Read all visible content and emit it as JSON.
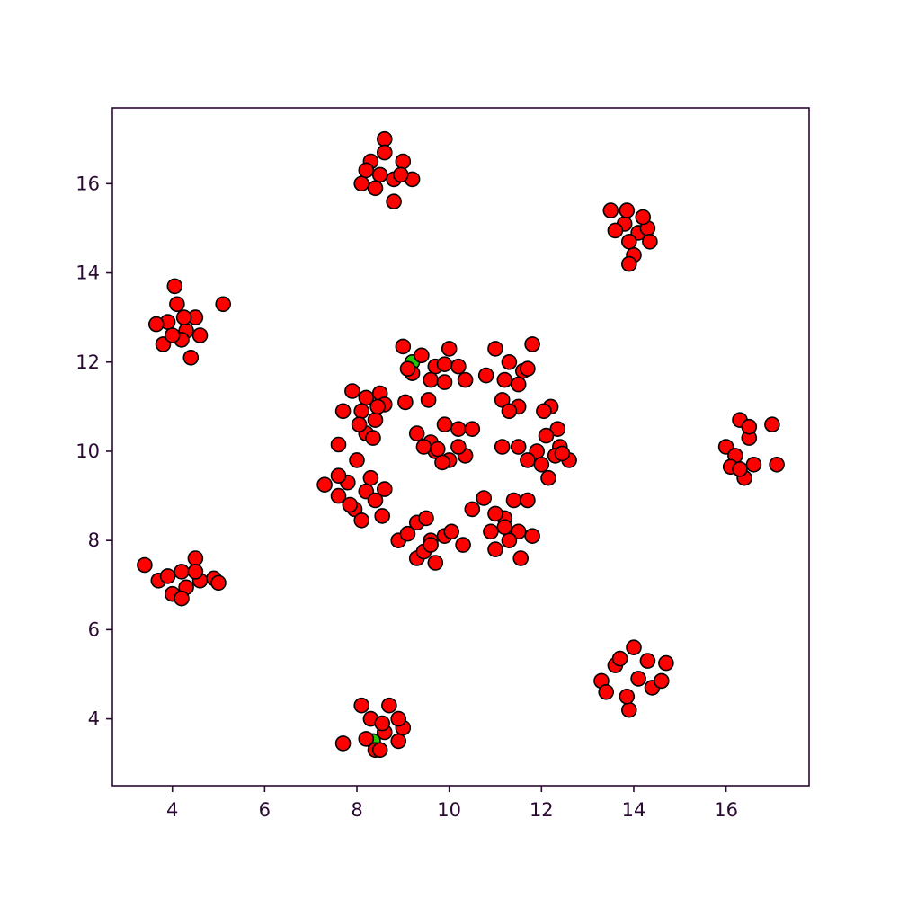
{
  "chart_data": {
    "type": "scatter",
    "title": "",
    "xlabel": "",
    "ylabel": "",
    "xlim": [
      2.7,
      17.8
    ],
    "ylim": [
      2.5,
      17.7
    ],
    "xticks": [
      4,
      6,
      8,
      10,
      12,
      14,
      16
    ],
    "yticks": [
      4,
      6,
      8,
      10,
      12,
      14,
      16
    ],
    "grid": false,
    "legend": "none",
    "colors": {
      "marker_fill": "#ff0000",
      "marker_edge": "#000000",
      "highlight_fill": "#22c800",
      "axis": "#2a0a33",
      "tick_label": "#2a0a33"
    },
    "series": [
      {
        "points": [
          [
            8.6,
            17.0
          ],
          [
            8.3,
            16.5
          ],
          [
            8.5,
            16.2
          ],
          [
            8.8,
            16.1
          ],
          [
            9.0,
            16.5
          ],
          [
            8.1,
            16.0
          ],
          [
            8.4,
            15.9
          ],
          [
            8.8,
            15.6
          ],
          [
            9.2,
            16.1
          ],
          [
            8.6,
            16.7
          ],
          [
            8.2,
            16.3
          ],
          [
            8.95,
            16.2
          ],
          [
            13.5,
            15.4
          ],
          [
            13.8,
            15.1
          ],
          [
            14.1,
            14.9
          ],
          [
            14.3,
            15.0
          ],
          [
            13.9,
            14.7
          ],
          [
            13.6,
            14.95
          ],
          [
            14.0,
            14.4
          ],
          [
            13.9,
            14.2
          ],
          [
            14.2,
            15.25
          ],
          [
            13.85,
            15.4
          ],
          [
            14.35,
            14.7
          ],
          [
            4.05,
            13.7
          ],
          [
            4.1,
            13.3
          ],
          [
            3.9,
            12.9
          ],
          [
            4.3,
            12.7
          ],
          [
            4.5,
            13.0
          ],
          [
            3.8,
            12.4
          ],
          [
            4.2,
            12.5
          ],
          [
            4.4,
            12.1
          ],
          [
            4.6,
            12.6
          ],
          [
            5.1,
            13.3
          ],
          [
            3.65,
            12.85
          ],
          [
            4.25,
            13.0
          ],
          [
            4.0,
            12.6
          ],
          [
            16.3,
            10.7
          ],
          [
            16.0,
            10.1
          ],
          [
            16.2,
            9.9
          ],
          [
            16.5,
            10.3
          ],
          [
            16.6,
            9.7
          ],
          [
            16.4,
            9.4
          ],
          [
            16.1,
            9.65
          ],
          [
            17.0,
            10.6
          ],
          [
            17.1,
            9.7
          ],
          [
            16.5,
            10.55
          ],
          [
            16.3,
            9.6
          ],
          [
            3.4,
            7.45
          ],
          [
            3.7,
            7.1
          ],
          [
            4.0,
            6.8
          ],
          [
            4.2,
            7.3
          ],
          [
            4.5,
            7.6
          ],
          [
            4.3,
            6.95
          ],
          [
            4.6,
            7.1
          ],
          [
            4.9,
            7.15
          ],
          [
            5.0,
            7.05
          ],
          [
            4.2,
            6.7
          ],
          [
            4.5,
            7.3
          ],
          [
            3.9,
            7.2
          ],
          [
            13.3,
            4.85
          ],
          [
            13.6,
            5.2
          ],
          [
            14.0,
            5.6
          ],
          [
            14.3,
            5.3
          ],
          [
            14.7,
            5.25
          ],
          [
            14.1,
            4.9
          ],
          [
            14.4,
            4.7
          ],
          [
            13.9,
            4.2
          ],
          [
            13.85,
            4.5
          ],
          [
            13.4,
            4.6
          ],
          [
            14.6,
            4.85
          ],
          [
            13.7,
            5.35
          ],
          [
            8.1,
            4.3
          ],
          [
            8.3,
            4.0
          ],
          [
            8.6,
            3.7
          ],
          [
            8.9,
            3.5
          ],
          [
            8.7,
            4.3
          ],
          [
            8.4,
            3.3
          ],
          [
            8.2,
            3.55
          ],
          [
            9.0,
            3.8
          ],
          [
            7.7,
            3.45
          ],
          [
            8.55,
            3.9
          ],
          [
            8.9,
            4.0
          ],
          [
            8.5,
            3.3
          ],
          [
            9.0,
            12.35
          ],
          [
            9.4,
            12.15
          ],
          [
            9.7,
            11.9
          ],
          [
            10.0,
            12.3
          ],
          [
            10.2,
            11.9
          ],
          [
            9.2,
            11.75
          ],
          [
            9.6,
            11.6
          ],
          [
            9.9,
            11.55
          ],
          [
            10.35,
            11.6
          ],
          [
            9.05,
            11.1
          ],
          [
            9.55,
            11.15
          ],
          [
            9.1,
            11.85
          ],
          [
            9.9,
            11.95
          ],
          [
            11.0,
            12.3
          ],
          [
            11.3,
            12.0
          ],
          [
            11.6,
            11.8
          ],
          [
            11.8,
            12.4
          ],
          [
            11.2,
            11.6
          ],
          [
            11.5,
            11.5
          ],
          [
            11.15,
            11.15
          ],
          [
            11.5,
            11.0
          ],
          [
            10.8,
            11.7
          ],
          [
            11.3,
            10.9
          ],
          [
            11.7,
            11.85
          ],
          [
            12.2,
            11.0
          ],
          [
            12.35,
            10.5
          ],
          [
            12.1,
            10.35
          ],
          [
            12.4,
            10.1
          ],
          [
            11.9,
            10.0
          ],
          [
            12.0,
            9.7
          ],
          [
            12.3,
            9.9
          ],
          [
            12.6,
            9.8
          ],
          [
            11.5,
            10.1
          ],
          [
            11.7,
            9.8
          ],
          [
            12.15,
            9.4
          ],
          [
            11.15,
            10.1
          ],
          [
            12.05,
            10.9
          ],
          [
            12.45,
            9.95
          ],
          [
            11.4,
            8.9
          ],
          [
            11.2,
            8.5
          ],
          [
            11.5,
            8.2
          ],
          [
            11.7,
            8.9
          ],
          [
            11.0,
            8.6
          ],
          [
            10.9,
            8.2
          ],
          [
            11.3,
            8.0
          ],
          [
            11.8,
            8.1
          ],
          [
            11.0,
            7.8
          ],
          [
            10.75,
            8.95
          ],
          [
            11.55,
            7.6
          ],
          [
            10.5,
            8.7
          ],
          [
            11.2,
            8.3
          ],
          [
            9.3,
            8.4
          ],
          [
            9.6,
            8.0
          ],
          [
            9.9,
            8.1
          ],
          [
            9.7,
            7.5
          ],
          [
            9.3,
            7.6
          ],
          [
            8.9,
            8.0
          ],
          [
            9.45,
            7.75
          ],
          [
            10.3,
            7.9
          ],
          [
            9.1,
            8.15
          ],
          [
            9.5,
            8.5
          ],
          [
            10.05,
            8.2
          ],
          [
            9.6,
            7.9
          ],
          [
            8.0,
            9.8
          ],
          [
            8.3,
            9.4
          ],
          [
            7.8,
            9.3
          ],
          [
            7.6,
            9.0
          ],
          [
            8.2,
            9.1
          ],
          [
            8.6,
            9.15
          ],
          [
            7.95,
            8.7
          ],
          [
            8.1,
            8.45
          ],
          [
            7.3,
            9.25
          ],
          [
            7.6,
            9.45
          ],
          [
            8.4,
            8.9
          ],
          [
            8.55,
            8.55
          ],
          [
            7.85,
            8.8
          ],
          [
            7.9,
            11.35
          ],
          [
            8.2,
            11.2
          ],
          [
            8.5,
            11.3
          ],
          [
            8.1,
            10.9
          ],
          [
            8.4,
            10.7
          ],
          [
            7.7,
            10.9
          ],
          [
            8.6,
            11.05
          ],
          [
            8.2,
            10.4
          ],
          [
            7.6,
            10.15
          ],
          [
            8.05,
            10.6
          ],
          [
            8.35,
            10.3
          ],
          [
            8.45,
            11.0
          ],
          [
            9.3,
            10.4
          ],
          [
            9.6,
            10.2
          ],
          [
            9.9,
            10.6
          ],
          [
            10.2,
            10.5
          ],
          [
            9.7,
            10.0
          ],
          [
            10.0,
            9.8
          ],
          [
            10.35,
            9.9
          ],
          [
            9.45,
            10.1
          ],
          [
            10.5,
            10.5
          ],
          [
            9.85,
            9.75
          ],
          [
            10.2,
            10.1
          ],
          [
            9.75,
            10.05
          ]
        ]
      },
      {
        "name": "",
        "points": [
          [
            9.2,
            12.0
          ],
          [
            8.35,
            3.5
          ]
        ]
      }
    ]
  }
}
